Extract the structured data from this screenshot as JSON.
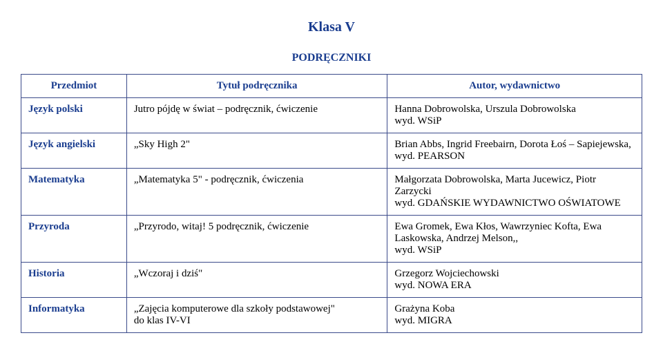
{
  "title": "Klasa V",
  "section": "PODRĘCZNIKI",
  "columns": [
    "Przedmiot",
    "Tytuł podręcznika",
    "Autor, wydawnictwo"
  ],
  "rows": [
    {
      "subject": "Język polski",
      "title": "Jutro pójdę w świat – podręcznik, ćwiczenie",
      "author_lines": [
        "Hanna Dobrowolska, Urszula Dobrowolska",
        "wyd. WSiP"
      ]
    },
    {
      "subject": "Język angielski",
      "title": "„Sky High 2\"",
      "author_lines": [
        "Brian Abbs, Ingrid Freebairn, Dorota Łoś – Sapiejewska,",
        "wyd. PEARSON"
      ]
    },
    {
      "subject": "Matematyka",
      "title": "„Matematyka 5\"  - podręcznik, ćwiczenia",
      "author_lines": [
        "Małgorzata Dobrowolska, Marta Jucewicz, Piotr Zarzycki",
        "wyd. GDAŃSKIE WYDAWNICTWO OŚWIATOWE"
      ]
    },
    {
      "subject": "Przyroda",
      "title": "„Przyrodo, witaj!   5  podręcznik,  ćwiczenie",
      "author_lines": [
        "Ewa Gromek, Ewa Kłos, Wawrzyniec Kofta, Ewa Laskowska, Andrzej Melson,,",
        "wyd. WSiP"
      ]
    },
    {
      "subject": "Historia",
      "title": "„Wczoraj i dziś\"",
      "author_lines": [
        "Grzegorz Wojciechowski",
        "wyd. NOWA ERA"
      ]
    },
    {
      "subject": "Informatyka",
      "title": "„Zajęcia komputerowe dla szkoły podstawowej\"\ndo  klas  IV-VI",
      "author_lines": [
        "Grażyna Koba",
        "wyd. MIGRA"
      ]
    }
  ],
  "colors": {
    "heading": "#1a3d8f",
    "border": "#3a4a8a",
    "text": "#000000",
    "background": "#ffffff"
  }
}
